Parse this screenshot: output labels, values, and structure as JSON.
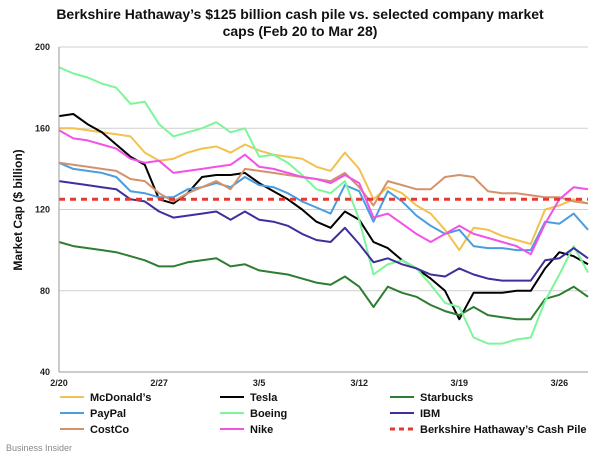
{
  "chart_data": {
    "type": "line",
    "title_line1": "Berkshire Hathaway’s $125 billion cash pile vs. selected company market",
    "title_line2": "caps (Feb 20 to Mar 28)",
    "ylabel": "Market Cap ($ billion)",
    "xlabel": "",
    "ylim": [
      40,
      200
    ],
    "yticks": [
      40,
      80,
      120,
      160,
      200
    ],
    "x_tick_labels": [
      "2/20",
      "2/27",
      "3/5",
      "3/12",
      "3/19",
      "3/26"
    ],
    "x_tick_positions": [
      0,
      7,
      14,
      21,
      28,
      35
    ],
    "x_range": [
      0,
      37
    ],
    "grid": "horizontal",
    "legend_position": "bottom",
    "series": [
      {
        "name": "McDonald’s",
        "color": "#f2c14e",
        "x": [
          0,
          1,
          2,
          3,
          4,
          5,
          6,
          7,
          8,
          9,
          10,
          11,
          12,
          13,
          14,
          15,
          16,
          17,
          18,
          19,
          20,
          21,
          22,
          23,
          24,
          25,
          26,
          27,
          28,
          29,
          30,
          31,
          32,
          33,
          34,
          35,
          36,
          37
        ],
        "y": [
          160,
          160,
          159,
          158,
          157,
          156,
          148,
          144,
          145,
          148,
          150,
          151,
          148,
          152,
          149,
          147,
          146,
          145,
          141,
          139,
          148,
          140,
          125,
          131,
          128,
          122,
          118,
          110,
          100,
          111,
          110,
          107,
          105,
          103,
          120,
          122,
          125,
          123
        ]
      },
      {
        "name": "Tesla",
        "color": "#000000",
        "x": [
          0,
          1,
          2,
          3,
          4,
          5,
          6,
          7,
          8,
          9,
          10,
          11,
          12,
          13,
          14,
          15,
          16,
          17,
          18,
          19,
          20,
          21,
          22,
          23,
          24,
          25,
          26,
          27,
          28,
          29,
          30,
          31,
          32,
          33,
          34,
          35,
          36,
          37
        ],
        "y": [
          166,
          167,
          162,
          158,
          152,
          146,
          142,
          125,
          123,
          128,
          136,
          137,
          137,
          138,
          133,
          129,
          125,
          120,
          114,
          111,
          119,
          115,
          104,
          101,
          95,
          91,
          86,
          80,
          66,
          79,
          79,
          79,
          80,
          80,
          91,
          99,
          97,
          93
        ]
      },
      {
        "name": "Starbucks",
        "color": "#2e7d32",
        "x": [
          0,
          1,
          2,
          3,
          4,
          5,
          6,
          7,
          8,
          9,
          10,
          11,
          12,
          13,
          14,
          15,
          16,
          17,
          18,
          19,
          20,
          21,
          22,
          23,
          24,
          25,
          26,
          27,
          28,
          29,
          30,
          31,
          32,
          33,
          34,
          35,
          36,
          37
        ],
        "y": [
          104,
          102,
          101,
          100,
          99,
          97,
          95,
          92,
          92,
          94,
          95,
          96,
          92,
          93,
          90,
          89,
          88,
          86,
          84,
          83,
          87,
          82,
          72,
          82,
          79,
          77,
          73,
          70,
          68,
          72,
          68,
          67,
          66,
          66,
          76,
          78,
          82,
          77
        ]
      },
      {
        "name": "PayPal",
        "color": "#4a9de0",
        "x": [
          0,
          1,
          2,
          3,
          4,
          5,
          6,
          7,
          8,
          9,
          10,
          11,
          12,
          13,
          14,
          15,
          16,
          17,
          18,
          19,
          20,
          21,
          22,
          23,
          24,
          25,
          26,
          27,
          28,
          29,
          30,
          31,
          32,
          33,
          34,
          35,
          36,
          37
        ],
        "y": [
          143,
          140,
          139,
          138,
          136,
          129,
          128,
          126,
          126,
          130,
          131,
          133,
          131,
          136,
          132,
          131,
          128,
          124,
          121,
          118,
          132,
          129,
          114,
          129,
          124,
          117,
          112,
          108,
          110,
          102,
          101,
          101,
          100,
          100,
          114,
          113,
          118,
          110
        ]
      },
      {
        "name": "Boeing",
        "color": "#7ef59a",
        "x": [
          0,
          1,
          2,
          3,
          4,
          5,
          6,
          7,
          8,
          9,
          10,
          11,
          12,
          13,
          14,
          15,
          16,
          17,
          18,
          19,
          20,
          21,
          22,
          23,
          24,
          25,
          26,
          27,
          28,
          29,
          30,
          31,
          32,
          33,
          34,
          35,
          36,
          37
        ],
        "y": [
          190,
          187,
          185,
          182,
          180,
          172,
          173,
          162,
          156,
          158,
          160,
          163,
          158,
          160,
          146,
          147,
          143,
          137,
          130,
          128,
          134,
          115,
          88,
          93,
          95,
          91,
          83,
          74,
          72,
          57,
          54,
          54,
          56,
          57,
          75,
          88,
          102,
          89
        ]
      },
      {
        "name": "IBM",
        "color": "#3f2f9c",
        "x": [
          0,
          1,
          2,
          3,
          4,
          5,
          6,
          7,
          8,
          9,
          10,
          11,
          12,
          13,
          14,
          15,
          16,
          17,
          18,
          19,
          20,
          21,
          22,
          23,
          24,
          25,
          26,
          27,
          28,
          29,
          30,
          31,
          32,
          33,
          34,
          35,
          36,
          37
        ],
        "y": [
          134,
          133,
          132,
          131,
          130,
          125,
          124,
          119,
          116,
          117,
          118,
          119,
          115,
          119,
          115,
          114,
          112,
          108,
          105,
          104,
          111,
          103,
          94,
          96,
          93,
          91,
          88,
          87,
          91,
          88,
          86,
          85,
          85,
          85,
          95,
          96,
          101,
          96
        ]
      },
      {
        "name": "CostCo",
        "color": "#d4926a",
        "x": [
          0,
          1,
          2,
          3,
          4,
          5,
          6,
          7,
          8,
          9,
          10,
          11,
          12,
          13,
          14,
          15,
          16,
          17,
          18,
          19,
          20,
          21,
          22,
          23,
          24,
          25,
          26,
          27,
          28,
          29,
          30,
          31,
          32,
          33,
          34,
          35,
          36,
          37
        ],
        "y": [
          143,
          142,
          141,
          140,
          139,
          135,
          134,
          128,
          124,
          128,
          131,
          134,
          130,
          140,
          139,
          138,
          137,
          136,
          135,
          134,
          138,
          131,
          122,
          134,
          132,
          130,
          130,
          136,
          137,
          136,
          129,
          128,
          128,
          127,
          126,
          126,
          124,
          123
        ]
      },
      {
        "name": "Nike",
        "color": "#f252e6",
        "x": [
          0,
          1,
          2,
          3,
          4,
          5,
          6,
          7,
          8,
          9,
          10,
          11,
          12,
          13,
          14,
          15,
          16,
          17,
          18,
          19,
          20,
          21,
          22,
          23,
          24,
          25,
          26,
          27,
          28,
          29,
          30,
          31,
          32,
          33,
          34,
          35,
          36,
          37
        ],
        "y": [
          159,
          155,
          154,
          152,
          150,
          145,
          143,
          144,
          138,
          139,
          140,
          141,
          142,
          147,
          141,
          140,
          138,
          136,
          135,
          133,
          137,
          133,
          116,
          118,
          113,
          108,
          104,
          108,
          112,
          108,
          106,
          104,
          102,
          98,
          113,
          125,
          131,
          130
        ]
      },
      {
        "name": "Berkshire Hathaway’s Cash Pile",
        "color": "#e53935",
        "dashed": true,
        "x": [
          0,
          37
        ],
        "y": [
          125,
          125
        ]
      }
    ]
  },
  "source": "Business Insider"
}
